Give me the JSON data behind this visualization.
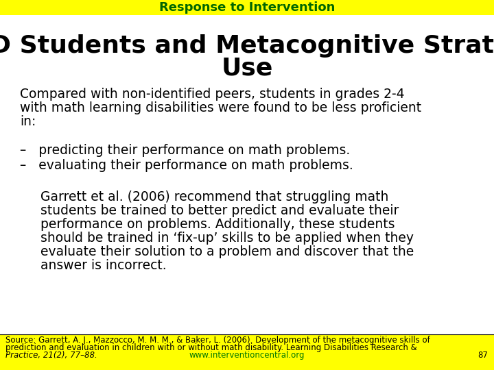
{
  "header_text": "Response to Intervention",
  "header_bg": "#ffff00",
  "header_text_color": "#006600",
  "title_line1": "MLD Students and Metacognitive Strategy",
  "title_line2": "Use",
  "body_text1_line1": "Compared with non-identified peers, students in grades 2-4",
  "body_text1_line2": "with math learning disabilities were found to be less proficient",
  "body_text1_line3": "in:",
  "bullet1": "–   predicting their performance on math problems.",
  "bullet2": "–   evaluating their performance on math problems.",
  "garrett_line1": "     Garrett et al. (2006) recommend that struggling math",
  "garrett_line2": "     students be trained to better predict and evaluate their",
  "garrett_line3": "     performance on problems. Additionally, these students",
  "garrett_line4": "     should be trained in ‘fix-up’ skills to be applied when they",
  "garrett_line5": "     evaluate their solution to a problem and discover that the",
  "garrett_line6": "     answer is incorrect.",
  "footer_bg": "#ffff00",
  "footer_src1": "Source: Garrett, A. J., Mazzocco, M. M. M., & Baker, L. (2006). Development of the metacognitive skills of",
  "footer_src2": "prediction and evaluation in children with or without math disability. Learning Disabilities Research &",
  "footer_src3": "Practice, 21(2), 77–88.",
  "footer_url": "www.interventioncentral.org",
  "footer_page": "87",
  "bg_color": "#ffffff",
  "body_font_size": 13.5,
  "title_font_size": 26,
  "header_font_size": 13,
  "footer_font_size": 8.5
}
